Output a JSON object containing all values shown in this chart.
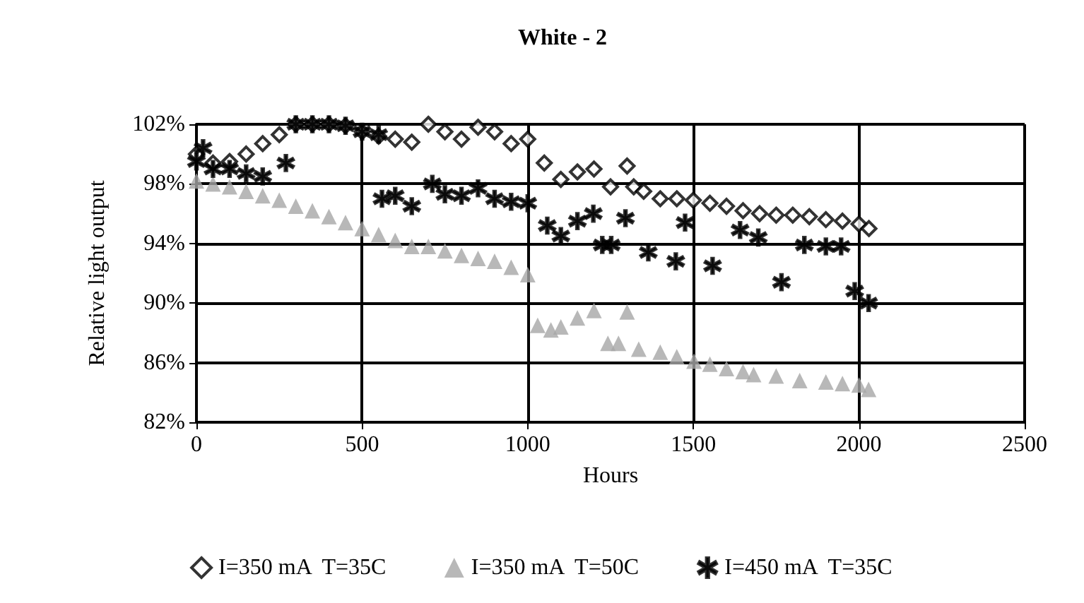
{
  "chart_data": {
    "type": "scatter",
    "title": "White - 2",
    "xlabel": "Hours",
    "ylabel": "Relative light output",
    "xlim": [
      0,
      2500
    ],
    "xticks": [
      0,
      500,
      1000,
      1500,
      2000,
      2500
    ],
    "ylim": [
      82,
      102
    ],
    "yticks": [
      {
        "value": 82,
        "label": "82%"
      },
      {
        "value": 86,
        "label": "86%"
      },
      {
        "value": 90,
        "label": "90%"
      },
      {
        "value": 94,
        "label": "94%"
      },
      {
        "value": 98,
        "label": "98%"
      },
      {
        "value": 102,
        "label": "102%"
      }
    ],
    "grid": true,
    "legend": "bottom",
    "series": [
      {
        "name": "I=350 mA  T=35C",
        "color": "#000000",
        "marker": "diamond",
        "x": [
          0,
          50,
          100,
          150,
          200,
          250,
          300,
          350,
          400,
          450,
          500,
          550,
          600,
          650,
          700,
          750,
          800,
          850,
          900,
          950,
          1000,
          1050,
          1100,
          1150,
          1200,
          1250,
          1300,
          1320,
          1350,
          1400,
          1450,
          1500,
          1550,
          1600,
          1650,
          1700,
          1750,
          1800,
          1850,
          1900,
          1950,
          2000,
          2030
        ],
        "values": [
          100,
          99.4,
          99.5,
          100,
          100.7,
          101.3,
          102,
          102,
          102,
          101.9,
          101.5,
          101.2,
          101,
          100.8,
          102,
          101.5,
          101,
          101.8,
          101.5,
          100.7,
          101,
          99.4,
          98.3,
          98.8,
          99,
          97.8,
          99.2,
          97.8,
          97.5,
          97,
          97,
          96.9,
          96.7,
          96.5,
          96.2,
          96,
          95.9,
          95.9,
          95.8,
          95.6,
          95.5,
          95.3,
          95
        ]
      },
      {
        "name": "I=350 mA  T=50C",
        "color": "#a6a6a6",
        "marker": "triangle",
        "x": [
          0,
          50,
          100,
          150,
          200,
          250,
          300,
          350,
          400,
          450,
          500,
          550,
          600,
          650,
          700,
          750,
          800,
          850,
          900,
          950,
          1000,
          1030,
          1070,
          1100,
          1150,
          1200,
          1242,
          1274,
          1300,
          1335,
          1400,
          1450,
          1502,
          1550,
          1600,
          1650,
          1682,
          1750,
          1821,
          1900,
          1950,
          2000,
          2029
        ],
        "values": [
          98.2,
          98,
          97.8,
          97.5,
          97.2,
          96.9,
          96.5,
          96.2,
          95.8,
          95.4,
          95,
          94.6,
          94.2,
          93.8,
          93.8,
          93.5,
          93.2,
          93,
          92.8,
          92.4,
          91.9,
          88.5,
          88.2,
          88.4,
          89,
          89.5,
          87.3,
          87.3,
          89.4,
          86.9,
          86.7,
          86.4,
          86.1,
          85.9,
          85.6,
          85.4,
          85.2,
          85.1,
          84.8,
          84.7,
          84.6,
          84.5,
          84.2
        ]
      },
      {
        "name": "I=450 mA  T=35C",
        "color": "#000000",
        "marker": "cross",
        "x": [
          0,
          20,
          50,
          100,
          150,
          200,
          270,
          300,
          350,
          400,
          450,
          500,
          550,
          560,
          600,
          650,
          712,
          750,
          800,
          850,
          900,
          950,
          1000,
          1059,
          1100,
          1150,
          1198,
          1225,
          1252,
          1295,
          1364,
          1447,
          1475,
          1558,
          1641,
          1696,
          1766,
          1835,
          1900,
          1946,
          1987,
          2029
        ],
        "values": [
          99.5,
          100.4,
          99,
          99,
          98.7,
          98.5,
          99.4,
          102,
          102,
          102,
          101.9,
          101.5,
          101.3,
          97,
          97.2,
          96.5,
          98,
          97.3,
          97.2,
          97.7,
          97,
          96.8,
          96.7,
          95.2,
          94.5,
          95.5,
          96,
          93.9,
          93.9,
          95.7,
          93.4,
          92.8,
          95.4,
          92.5,
          94.9,
          94.4,
          91.4,
          93.9,
          93.8,
          93.8,
          90.8,
          90
        ]
      }
    ]
  }
}
